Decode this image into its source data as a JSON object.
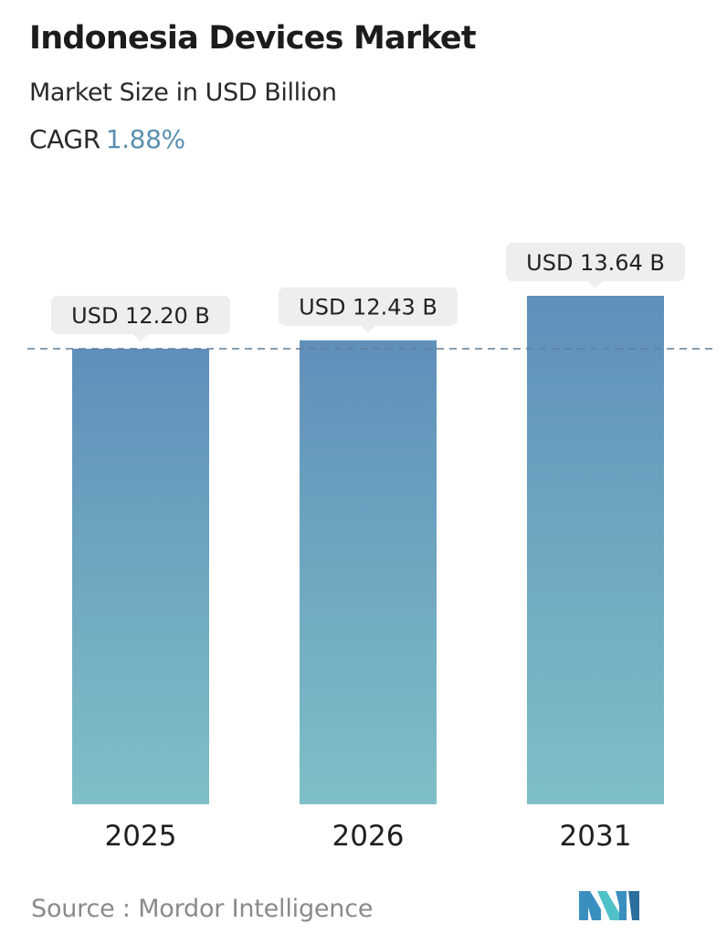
{
  "header": {
    "title": "Indonesia Devices Market",
    "subtitle": "Market Size in USD Billion",
    "cagr_label": "CAGR",
    "cagr_value": "1.88%"
  },
  "chart_data": {
    "type": "bar",
    "categories": [
      "2025",
      "2026",
      "2031"
    ],
    "values": [
      12.2,
      12.43,
      13.64
    ],
    "data_labels": [
      "USD 12.20 B",
      "USD 12.43 B",
      "USD 13.64 B"
    ],
    "title": "Indonesia Devices Market",
    "subtitle": "Market Size in USD Billion",
    "xlabel": "",
    "ylabel": "",
    "reference_line_value": 12.2,
    "grid": false,
    "legend": "none",
    "colors": {
      "bar_top": "#5f8fba",
      "bar_bottom": "#7fbfc7",
      "reference_line": "#5f7f99",
      "label_bg": "#eeeeee"
    }
  },
  "footer": {
    "source": "Source :  Mordor Intelligence",
    "logo_icon": "mordor-intelligence-logo-icon"
  }
}
